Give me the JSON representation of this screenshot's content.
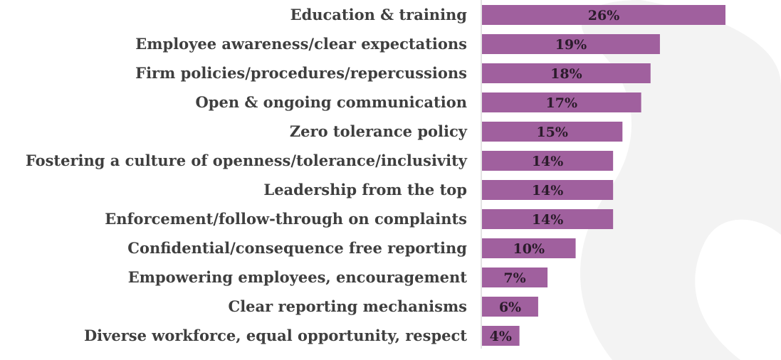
{
  "chart_data": {
    "type": "bar",
    "orientation": "horizontal",
    "categories": [
      "Education & training",
      "Employee awareness/clear expectations",
      "Firm policies/procedures/repercussions",
      "Open & ongoing communication",
      "Zero tolerance policy",
      "Fostering a culture of openness/tolerance/inclusivity",
      "Leadership from the top",
      "Enforcement/follow-through on complaints",
      "Confidential/consequence free reporting",
      "Empowering employees, encouragement",
      "Clear reporting mechanisms",
      "Diverse workforce, equal opportunity, respect"
    ],
    "values": [
      26,
      19,
      18,
      17,
      15,
      14,
      14,
      14,
      10,
      7,
      6,
      4
    ],
    "value_labels": [
      "26%",
      "19%",
      "18%",
      "17%",
      "15%",
      "14%",
      "14%",
      "14%",
      "10%",
      "7%",
      "6%",
      "4%"
    ],
    "title": "",
    "xlabel": "",
    "ylabel": "",
    "xlim": [
      0,
      26
    ],
    "grid": false,
    "legend": "none",
    "colors": {
      "bar": "#a0609e",
      "label_text": "#3f3f3f",
      "value_text": "#2b1b2b",
      "axis_line": "#c8c8c8",
      "background_swoosh": "#f1f1f1"
    }
  }
}
